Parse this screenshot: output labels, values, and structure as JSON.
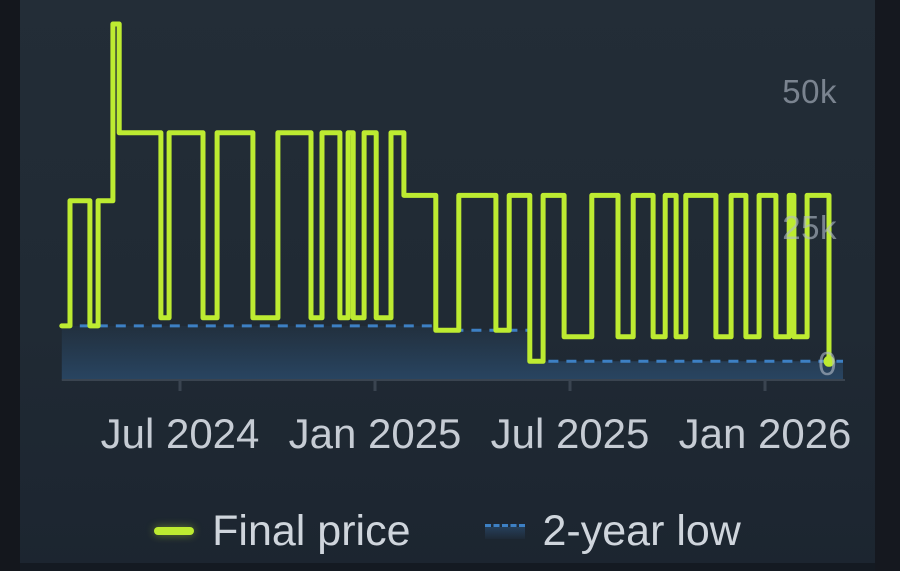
{
  "colors": {
    "final_price": "#bdeb31",
    "two_year_low": "#3d80c4",
    "chart_background": "#202a34",
    "side_band": "#14171d",
    "axis_line": "#3a4450",
    "x_label_text": "#c6ccd4",
    "y_label_text": "#b0bac6",
    "legend_text": "#cfd5dc"
  },
  "chart_data": {
    "type": "line",
    "subtype": "step",
    "title": "",
    "xlabel": "",
    "ylabel": "",
    "grid": false,
    "legend_position": "bottom",
    "x_unit": "decimal_year",
    "x_range": [
      2024.197,
      2026.2
    ],
    "ylim": [
      0,
      62500
    ],
    "y_ticks": [
      {
        "label": "50k",
        "value": 50000
      },
      {
        "label": "25k",
        "value": 25000
      },
      {
        "label": "0",
        "value": 0
      }
    ],
    "x_ticks": [
      {
        "label": "Jul 2024",
        "t": 2024.5
      },
      {
        "label": "Jan 2025",
        "t": 2025.0
      },
      {
        "label": "Jul 2025",
        "t": 2025.5
      },
      {
        "label": "Jan 2026",
        "t": 2026.0
      }
    ],
    "series": [
      {
        "name": "Final price",
        "color": "#bdeb31",
        "style": "solid",
        "end_marker": true,
        "points": [
          [
            2024.197,
            7000
          ],
          [
            2024.218,
            30000
          ],
          [
            2024.269,
            7000
          ],
          [
            2024.29,
            30000
          ],
          [
            2024.328,
            62500
          ],
          [
            2024.344,
            42500
          ],
          [
            2024.451,
            8500
          ],
          [
            2024.472,
            42500
          ],
          [
            2024.559,
            8500
          ],
          [
            2024.595,
            42500
          ],
          [
            2024.687,
            8500
          ],
          [
            2024.751,
            42500
          ],
          [
            2024.836,
            8500
          ],
          [
            2024.864,
            42500
          ],
          [
            2024.91,
            8500
          ],
          [
            2024.931,
            42500
          ],
          [
            2024.944,
            8500
          ],
          [
            2024.972,
            42500
          ],
          [
            2025.003,
            8500
          ],
          [
            2025.041,
            42500
          ],
          [
            2025.074,
            31000
          ],
          [
            2025.156,
            6200
          ],
          [
            2025.215,
            31000
          ],
          [
            2025.31,
            6200
          ],
          [
            2025.344,
            31000
          ],
          [
            2025.397,
            500
          ],
          [
            2025.431,
            31000
          ],
          [
            2025.485,
            5000
          ],
          [
            2025.556,
            31000
          ],
          [
            2025.623,
            5000
          ],
          [
            2025.662,
            31000
          ],
          [
            2025.713,
            5000
          ],
          [
            2025.744,
            31000
          ],
          [
            2025.772,
            5000
          ],
          [
            2025.797,
            31000
          ],
          [
            2025.874,
            5000
          ],
          [
            2025.913,
            31000
          ],
          [
            2025.951,
            5000
          ],
          [
            2025.985,
            31000
          ],
          [
            2026.028,
            5000
          ],
          [
            2026.062,
            31000
          ],
          [
            2026.074,
            5000
          ],
          [
            2026.108,
            31000
          ],
          [
            2026.164,
            500
          ]
        ]
      },
      {
        "name": "2-year low",
        "color": "#3d80c4",
        "style": "dashed",
        "fill_to_baseline": true,
        "points": [
          [
            2024.197,
            7000
          ],
          [
            2025.156,
            6200
          ],
          [
            2025.397,
            500
          ]
        ],
        "end_t": 2026.2
      }
    ]
  }
}
